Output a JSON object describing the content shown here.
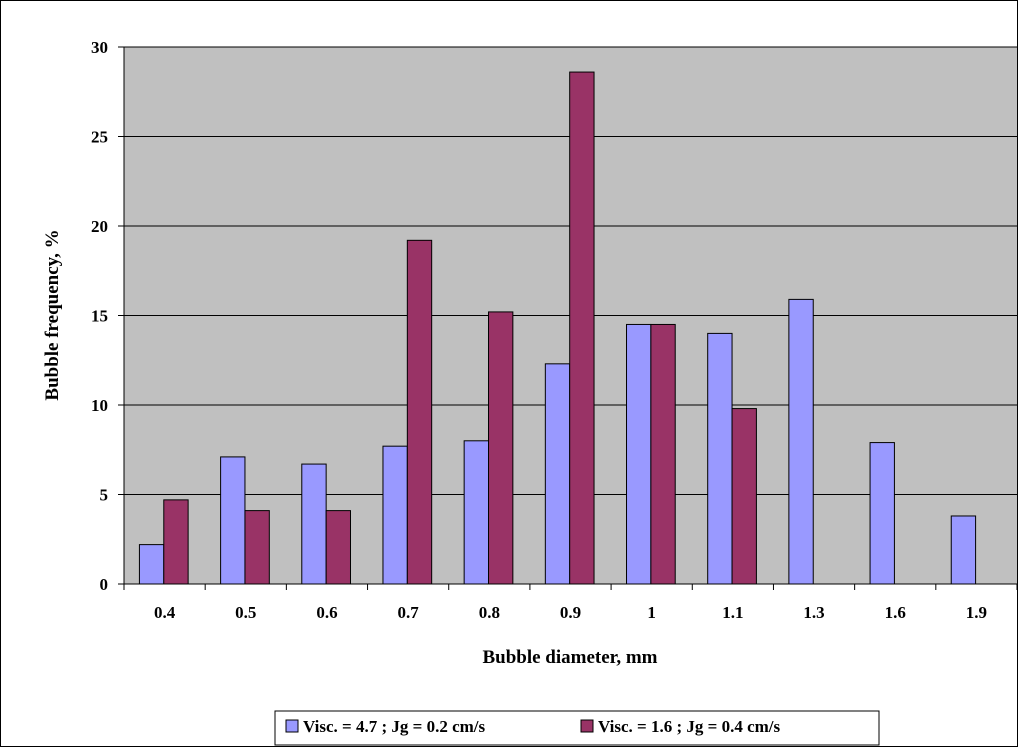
{
  "chart_data": {
    "type": "bar",
    "title": "",
    "xlabel": "Bubble diameter, mm",
    "ylabel": "Bubble frequency, %",
    "categories": [
      "0.4",
      "0.5",
      "0.6",
      "0.7",
      "0.8",
      "0.9",
      "1",
      "1.1",
      "1.3",
      "1.6",
      "1.9"
    ],
    "yticks": [
      "0",
      "5",
      "10",
      "15",
      "20",
      "25",
      "30"
    ],
    "ylim": [
      0,
      30
    ],
    "grid": true,
    "legend_position": "bottom",
    "plot_background": "#C0C0C0",
    "series": [
      {
        "name": "Visc. = 4.7 ; Jg = 0.2 cm/s",
        "color": "#9999FF",
        "values": [
          2.2,
          7.1,
          6.7,
          7.7,
          8.0,
          12.3,
          14.5,
          14.0,
          15.9,
          7.9,
          3.8
        ]
      },
      {
        "name": "Visc. = 1.6 ; Jg = 0.4 cm/s",
        "color": "#993366",
        "values": [
          4.7,
          4.1,
          4.1,
          19.2,
          15.2,
          28.6,
          14.5,
          9.8,
          null,
          null,
          null
        ]
      }
    ]
  }
}
